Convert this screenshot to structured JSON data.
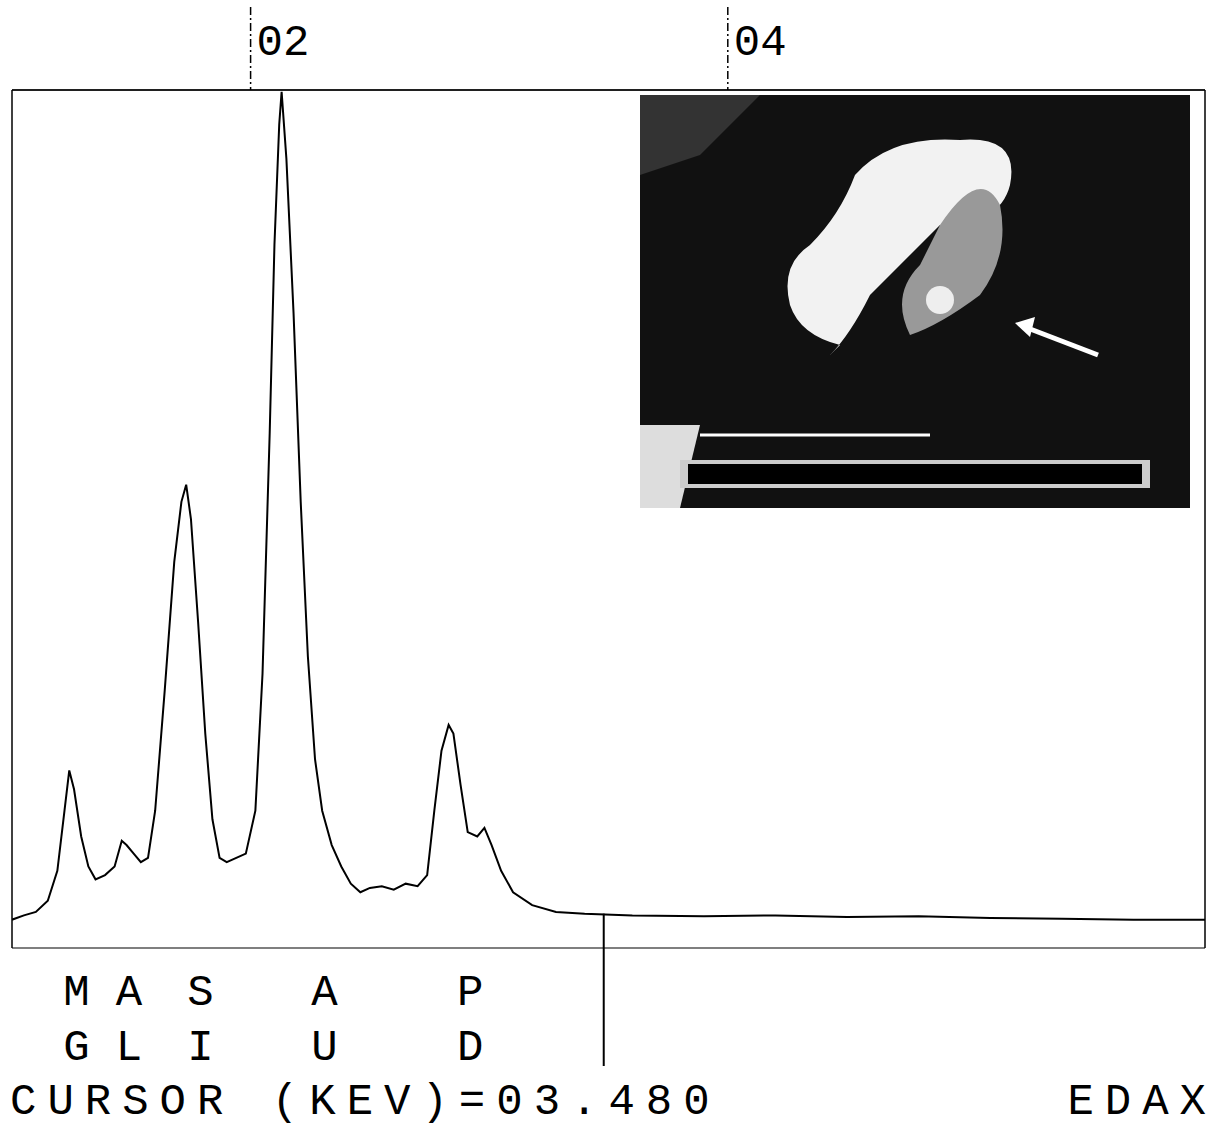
{
  "chart_data": {
    "type": "line",
    "x": [
      1.0,
      1.05,
      1.1,
      1.15,
      1.19,
      1.22,
      1.24,
      1.26,
      1.29,
      1.32,
      1.35,
      1.39,
      1.43,
      1.46,
      1.48,
      1.51,
      1.54,
      1.57,
      1.6,
      1.64,
      1.68,
      1.71,
      1.73,
      1.75,
      1.78,
      1.81,
      1.84,
      1.87,
      1.9,
      1.94,
      1.98,
      2.02,
      2.05,
      2.08,
      2.1,
      2.12,
      2.13,
      2.15,
      2.18,
      2.21,
      2.24,
      2.27,
      2.3,
      2.34,
      2.38,
      2.42,
      2.46,
      2.5,
      2.55,
      2.6,
      2.65,
      2.7,
      2.74,
      2.77,
      2.8,
      2.83,
      2.85,
      2.88,
      2.91,
      2.95,
      2.98,
      3.01,
      3.05,
      3.1,
      3.18,
      3.28,
      3.4,
      3.6,
      3.9,
      4.2,
      4.5,
      4.8,
      5.1,
      5.4,
      5.7,
      6.0
    ],
    "values": [
      0.33,
      0.38,
      0.42,
      0.55,
      0.9,
      1.6,
      2.07,
      1.85,
      1.3,
      0.95,
      0.8,
      0.85,
      0.95,
      1.25,
      1.2,
      1.1,
      1.0,
      1.05,
      1.6,
      3.0,
      4.5,
      5.2,
      5.4,
      5.0,
      3.8,
      2.5,
      1.5,
      1.05,
      1.0,
      1.05,
      1.1,
      1.6,
      3.2,
      6.0,
      8.2,
      9.6,
      9.98,
      9.2,
      7.4,
      5.2,
      3.4,
      2.2,
      1.6,
      1.2,
      0.95,
      0.75,
      0.65,
      0.7,
      0.72,
      0.68,
      0.75,
      0.72,
      0.85,
      1.6,
      2.3,
      2.6,
      2.5,
      1.9,
      1.35,
      1.3,
      1.4,
      1.2,
      0.9,
      0.65,
      0.5,
      0.42,
      0.4,
      0.38,
      0.37,
      0.38,
      0.36,
      0.37,
      0.35,
      0.34,
      0.33,
      0.33
    ],
    "color": "#000000",
    "xlim": [
      1,
      6
    ],
    "xticks": [
      {
        "value": 2,
        "label": "02"
      },
      {
        "value": 4,
        "label": "04"
      }
    ],
    "ylim": [
      0,
      10
    ],
    "yticks": [
      0,
      1,
      2,
      3,
      4,
      5,
      6,
      7,
      8,
      9,
      10
    ],
    "grid": true,
    "tick_labels": "x",
    "annotations": [
      {
        "text": "MG",
        "x": 1.27
      },
      {
        "text": "AL",
        "x": 1.49
      },
      {
        "text": "SI",
        "x": 1.79
      },
      {
        "text": "AU",
        "x": 2.31
      },
      {
        "text": "PD",
        "x": 2.92
      }
    ],
    "cursor": 3.48,
    "cursor_label": "CURSOR (KEV)=03.480",
    "brand": "EDAX"
  }
}
